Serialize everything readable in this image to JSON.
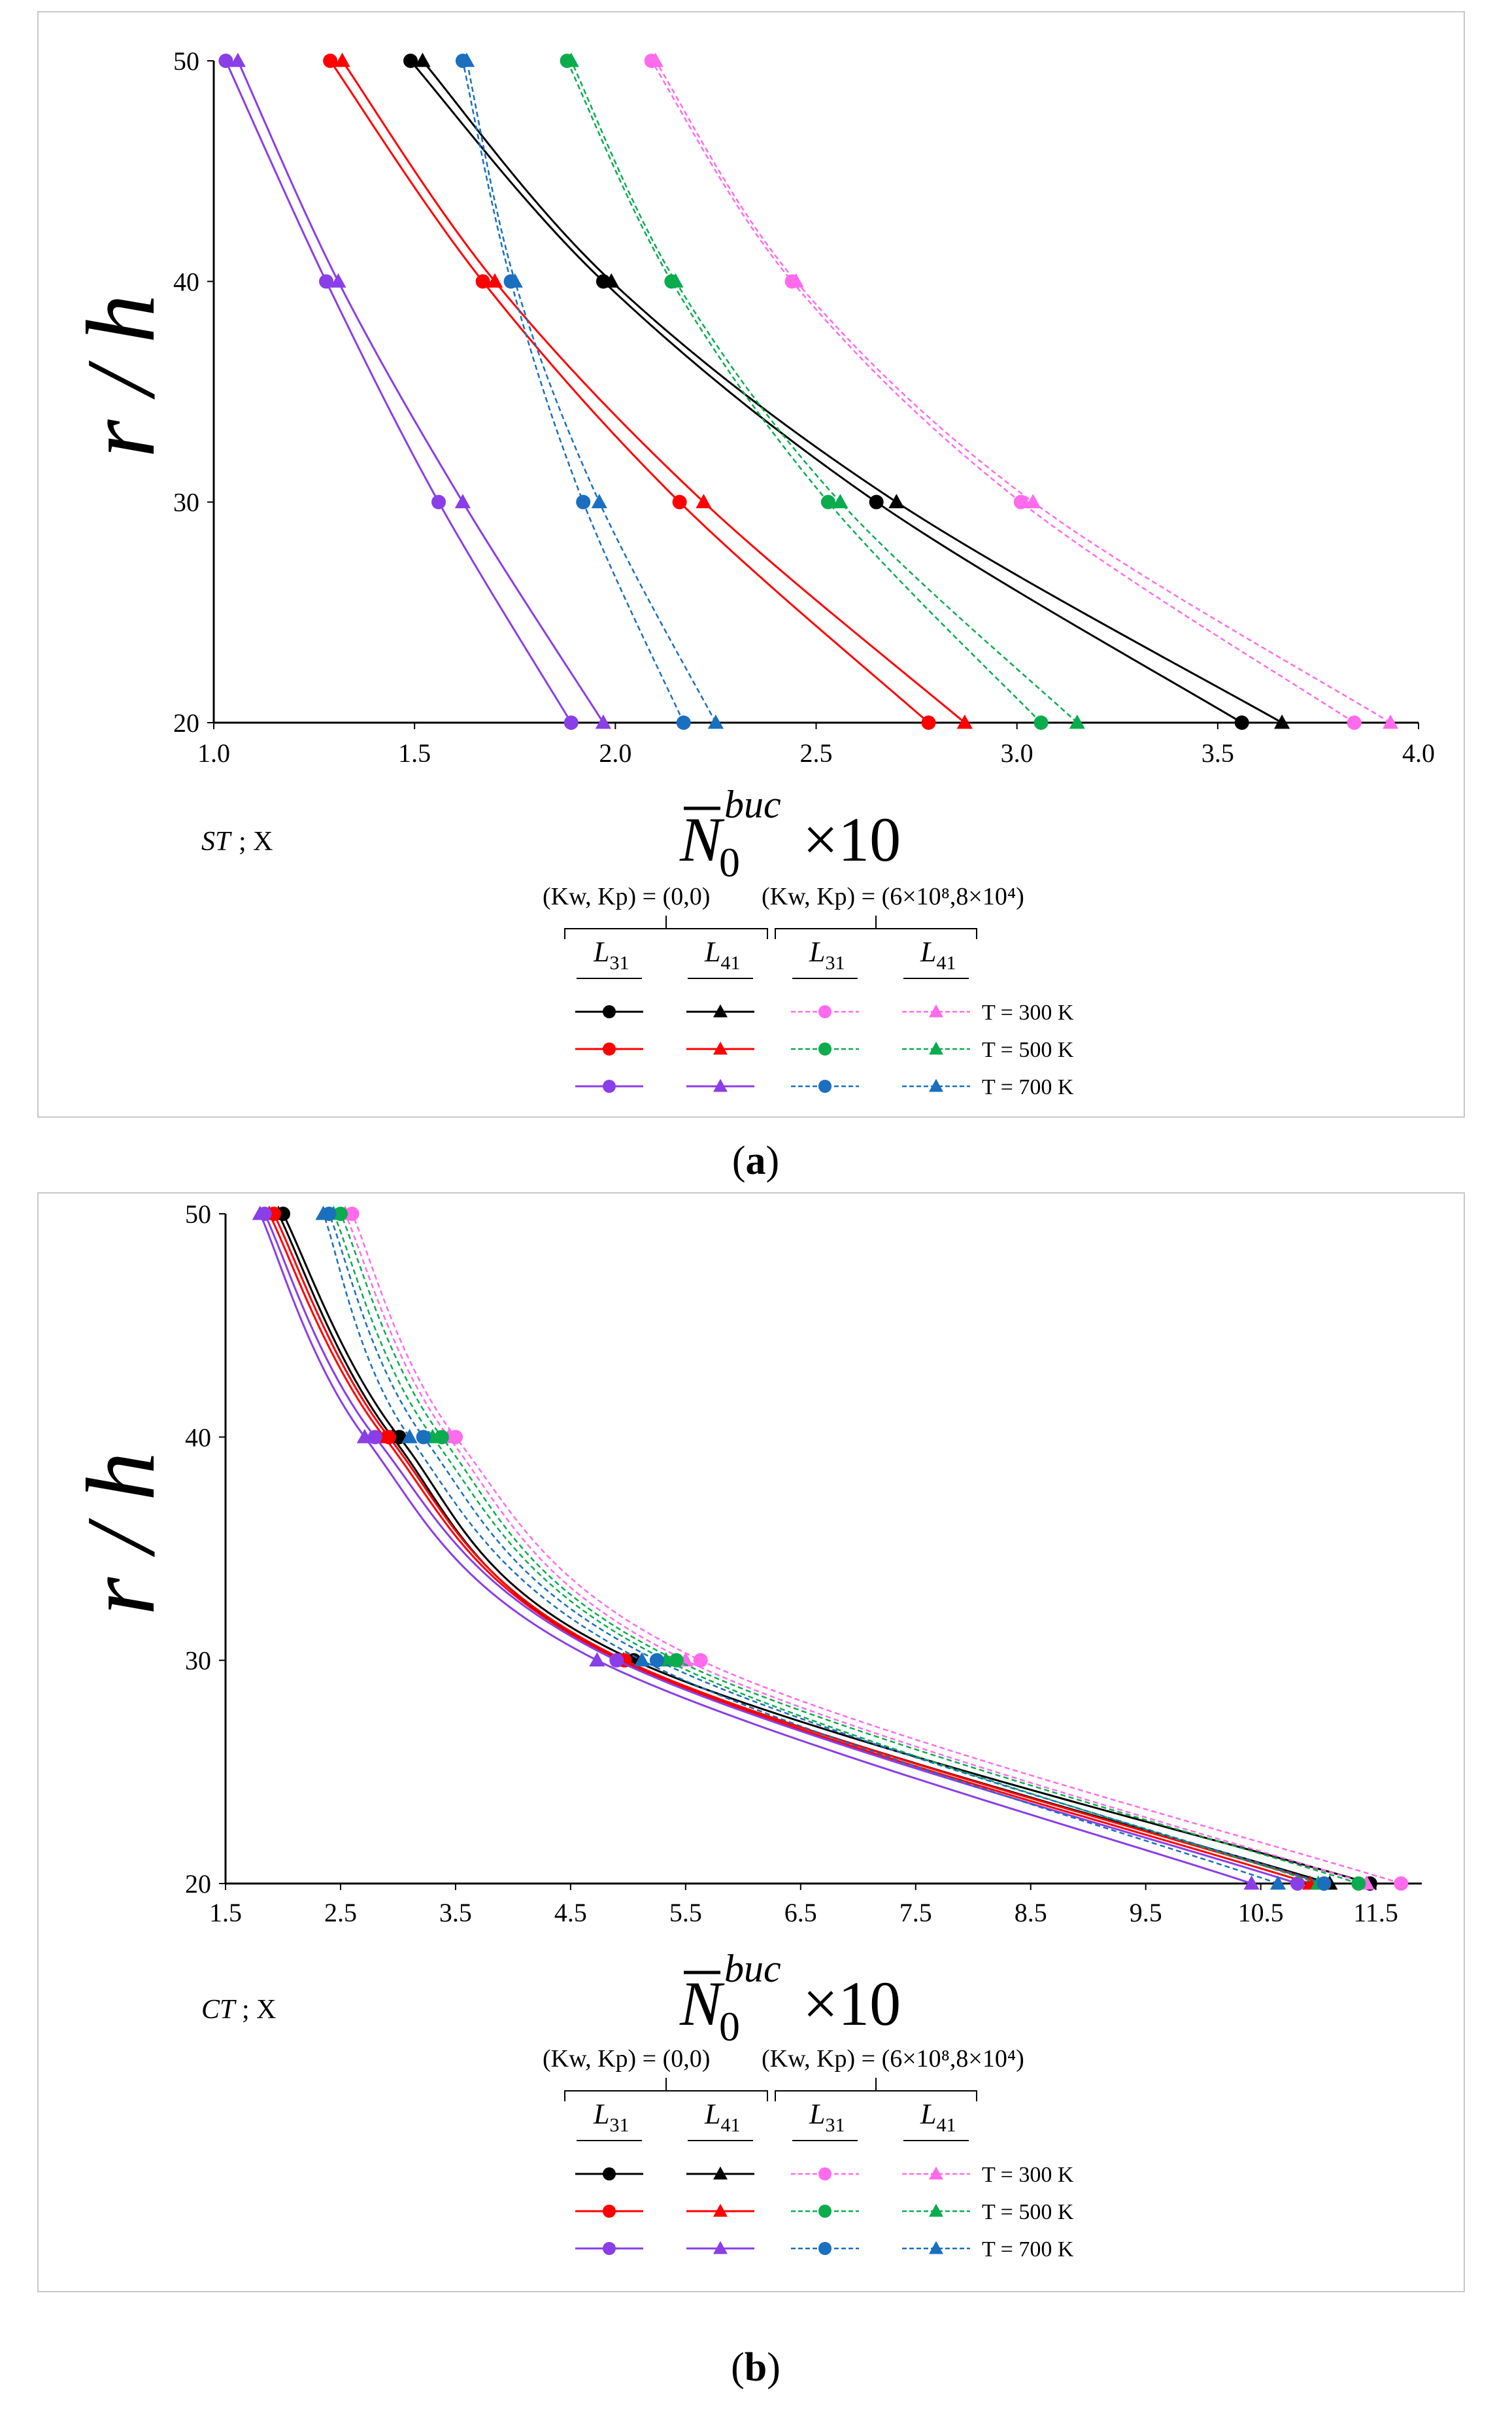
{
  "figure": {
    "panels": [
      {
        "id": "a",
        "caption_letter": "a",
        "tag": "ST",
        "tag_suffix": "; X",
        "y_label": "r / h",
        "x_label_base": "N",
        "x_label_sub": "0",
        "x_label_sup": "buc",
        "x_label_factor": "×10",
        "x_ticks": [
          "1.0",
          "1.5",
          "2.0",
          "2.5",
          "3.0",
          "3.5",
          "4.0"
        ],
        "y_ticks": [
          "20",
          "30",
          "40",
          "50"
        ],
        "legend": {
          "group_left": "(Kw, Kp) = (0,0)",
          "group_right": "(Kw, Kp) = (6×10⁸,8×10⁴)",
          "col_labels": [
            "L31",
            "L41",
            "L31",
            "L41"
          ],
          "row_labels": [
            "T = 300 K",
            "T = 500 K",
            "T = 700 K"
          ]
        }
      },
      {
        "id": "b",
        "caption_letter": "b",
        "tag": "CT",
        "tag_suffix": "; X",
        "y_label": "r / h",
        "x_label_base": "N",
        "x_label_sub": "0",
        "x_label_sup": "buc",
        "x_label_factor": "×10",
        "x_ticks": [
          "1.5",
          "2.5",
          "3.5",
          "4.5",
          "5.5",
          "6.5",
          "7.5",
          "8.5",
          "9.5",
          "10.5",
          "11.5"
        ],
        "y_ticks": [
          "20",
          "30",
          "40",
          "50"
        ],
        "legend": {
          "group_left": "(Kw, Kp) = (0,0)",
          "group_right": "(Kw, Kp) = (6×10⁸,8×10⁴)",
          "col_labels": [
            "L31",
            "L41",
            "L31",
            "L41"
          ],
          "row_labels": [
            "T = 300 K",
            "T = 500 K",
            "T = 700 K"
          ]
        }
      }
    ]
  },
  "colors": {
    "T300_base": "#000000",
    "T500_base": "#ff0000",
    "T700_base": "#8a3ee8",
    "T300_found": "#ff6bec",
    "T500_found": "#0aac4e",
    "T700_found": "#1a6fbf"
  },
  "chart_data": [
    {
      "type": "line",
      "title": "ST ; X",
      "xlabel": "N̄0^buc ×10",
      "ylabel": "r / h",
      "xlim": [
        1.0,
        4.0
      ],
      "ylim": [
        20,
        50
      ],
      "y": [
        20,
        30,
        40,
        50
      ],
      "series": [
        {
          "name": "L31, (Kw,Kp)=(0,0), T = 300 K",
          "x": [
            3.56,
            2.65,
            1.97,
            1.49
          ],
          "marker": "circle",
          "dash": false,
          "color_key": "T300_base"
        },
        {
          "name": "L41, (Kw,Kp)=(0,0), T = 300 K",
          "x": [
            3.66,
            2.7,
            1.99,
            1.52
          ],
          "marker": "triangle",
          "dash": false,
          "color_key": "T300_base"
        },
        {
          "name": "L31, (Kw,Kp)=(0,0), T = 500 K",
          "x": [
            2.78,
            2.16,
            1.67,
            1.29
          ],
          "marker": "circle",
          "dash": false,
          "color_key": "T500_base"
        },
        {
          "name": "L41, (Kw,Kp)=(0,0), T = 500 K",
          "x": [
            2.87,
            2.22,
            1.7,
            1.32
          ],
          "marker": "triangle",
          "dash": false,
          "color_key": "T500_base"
        },
        {
          "name": "L31, (Kw,Kp)=(0,0), T = 700 K",
          "x": [
            1.89,
            1.56,
            1.28,
            1.03
          ],
          "marker": "circle",
          "dash": false,
          "color_key": "T700_base"
        },
        {
          "name": "L41, (Kw,Kp)=(0,0), T = 700 K",
          "x": [
            1.97,
            1.62,
            1.31,
            1.06
          ],
          "marker": "triangle",
          "dash": false,
          "color_key": "T700_base"
        },
        {
          "name": "L31, (Kw,Kp)=(6e8,8e4), T = 300 K",
          "x": [
            3.84,
            3.01,
            2.44,
            2.09
          ],
          "marker": "circle",
          "dash": true,
          "color_key": "T300_found"
        },
        {
          "name": "L41, (Kw,Kp)=(6e8,8e4), T = 300 K",
          "x": [
            3.93,
            3.04,
            2.45,
            2.1
          ],
          "marker": "triangle",
          "dash": true,
          "color_key": "T300_found"
        },
        {
          "name": "L31, (Kw,Kp)=(6e8,8e4), T = 500 K",
          "x": [
            3.06,
            2.53,
            2.14,
            1.88
          ],
          "marker": "circle",
          "dash": true,
          "color_key": "T500_found"
        },
        {
          "name": "L41, (Kw,Kp)=(6e8,8e4), T = 500 K",
          "x": [
            3.15,
            2.56,
            2.15,
            1.89
          ],
          "marker": "triangle",
          "dash": true,
          "color_key": "T500_found"
        },
        {
          "name": "L31, (Kw,Kp)=(6e8,8e4), T = 700 K",
          "x": [
            2.17,
            1.92,
            1.74,
            1.62
          ],
          "marker": "circle",
          "dash": true,
          "color_key": "T700_found"
        },
        {
          "name": "L41, (Kw,Kp)=(6e8,8e4), T = 700 K",
          "x": [
            2.25,
            1.96,
            1.75,
            1.63
          ],
          "marker": "triangle",
          "dash": true,
          "color_key": "T700_found"
        }
      ]
    },
    {
      "type": "line",
      "title": "CT ; X",
      "xlabel": "N̄0^buc ×10",
      "ylabel": "r / h",
      "xlim": [
        1.5,
        11.9
      ],
      "ylim": [
        20,
        50
      ],
      "y": [
        20,
        30,
        40,
        50
      ],
      "series": [
        {
          "name": "L31, (Kw,Kp)=(0,0), T = 300 K",
          "x": [
            11.45,
            5.05,
            3.01,
            2.0
          ],
          "marker": "circle",
          "dash": false,
          "color_key": "T300_base"
        },
        {
          "name": "L41, (Kw,Kp)=(0,0), T = 300 K",
          "x": [
            11.1,
            4.96,
            2.95,
            1.96
          ],
          "marker": "triangle",
          "dash": false,
          "color_key": "T300_base"
        },
        {
          "name": "L31, (Kw,Kp)=(0,0), T = 500 K",
          "x": [
            11.05,
            4.97,
            2.92,
            1.92
          ],
          "marker": "circle",
          "dash": false,
          "color_key": "T500_base"
        },
        {
          "name": "L41, (Kw,Kp)=(0,0), T = 500 K",
          "x": [
            10.93,
            4.93,
            2.88,
            1.88
          ],
          "marker": "triangle",
          "dash": false,
          "color_key": "T500_base"
        },
        {
          "name": "L31, (Kw,Kp)=(0,0), T = 700 K",
          "x": [
            10.82,
            4.9,
            2.8,
            1.84
          ],
          "marker": "circle",
          "dash": false,
          "color_key": "T700_base"
        },
        {
          "name": "L41, (Kw,Kp)=(0,0), T = 700 K",
          "x": [
            10.42,
            4.73,
            2.71,
            1.8
          ],
          "marker": "triangle",
          "dash": false,
          "color_key": "T700_base"
        },
        {
          "name": "L31, (Kw,Kp)=(6e8,8e4), T = 300 K",
          "x": [
            11.72,
            5.63,
            3.5,
            2.6
          ],
          "marker": "circle",
          "dash": true,
          "color_key": "T300_found"
        },
        {
          "name": "L41, (Kw,Kp)=(6e8,8e4), T = 300 K",
          "x": [
            11.42,
            5.5,
            3.44,
            2.54
          ],
          "marker": "triangle",
          "dash": true,
          "color_key": "T300_found"
        },
        {
          "name": "L31, (Kw,Kp)=(6e8,8e4), T = 500 K",
          "x": [
            11.35,
            5.42,
            3.38,
            2.5
          ],
          "marker": "circle",
          "dash": true,
          "color_key": "T500_found"
        },
        {
          "name": "L41, (Kw,Kp)=(6e8,8e4), T = 500 K",
          "x": [
            11.0,
            5.33,
            3.3,
            2.44
          ],
          "marker": "triangle",
          "dash": true,
          "color_key": "T500_found"
        },
        {
          "name": "L31, (Kw,Kp)=(6e8,8e4), T = 700 K",
          "x": [
            11.05,
            5.25,
            3.22,
            2.4
          ],
          "marker": "circle",
          "dash": true,
          "color_key": "T700_found"
        },
        {
          "name": "L41, (Kw,Kp)=(6e8,8e4), T = 700 K",
          "x": [
            10.65,
            5.12,
            3.1,
            2.35
          ],
          "marker": "triangle",
          "dash": true,
          "color_key": "T700_found"
        }
      ]
    }
  ]
}
